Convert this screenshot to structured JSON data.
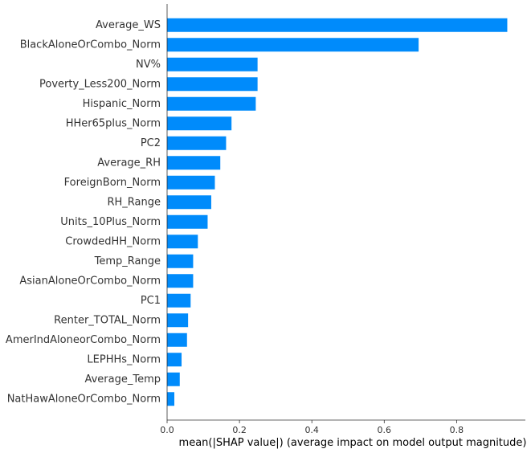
{
  "chart_data": {
    "type": "bar",
    "orientation": "horizontal",
    "categories": [
      "Average_WS",
      "BlackAloneOrCombo_Norm",
      "NV%",
      "Poverty_Less200_Norm",
      "Hispanic_Norm",
      "HHer65plus_Norm",
      "PC2",
      "Average_RH",
      "ForeignBorn_Norm",
      "RH_Range",
      "Units_10Plus_Norm",
      "CrowdedHH_Norm",
      "Temp_Range",
      "AsianAloneOrCombo_Norm",
      "PC1",
      "Renter_TOTAL_Norm",
      "AmerIndAloneorCombo_Norm",
      "LEPHHs_Norm",
      "Average_Temp",
      "NatHawAloneOrCombo_Norm"
    ],
    "values": [
      0.94,
      0.695,
      0.25,
      0.25,
      0.245,
      0.178,
      0.163,
      0.147,
      0.132,
      0.122,
      0.112,
      0.085,
      0.072,
      0.072,
      0.065,
      0.058,
      0.055,
      0.04,
      0.035,
      0.02
    ],
    "xlabel": "mean(|SHAP value|) (average impact on model output magnitude)",
    "ylabel": "",
    "title": "",
    "xlim": [
      0,
      0.99
    ],
    "xticks": [
      "0.0",
      "0.2",
      "0.4",
      "0.6",
      "0.8"
    ],
    "bar_color": "#008bfb",
    "grid": false,
    "legend": false
  }
}
